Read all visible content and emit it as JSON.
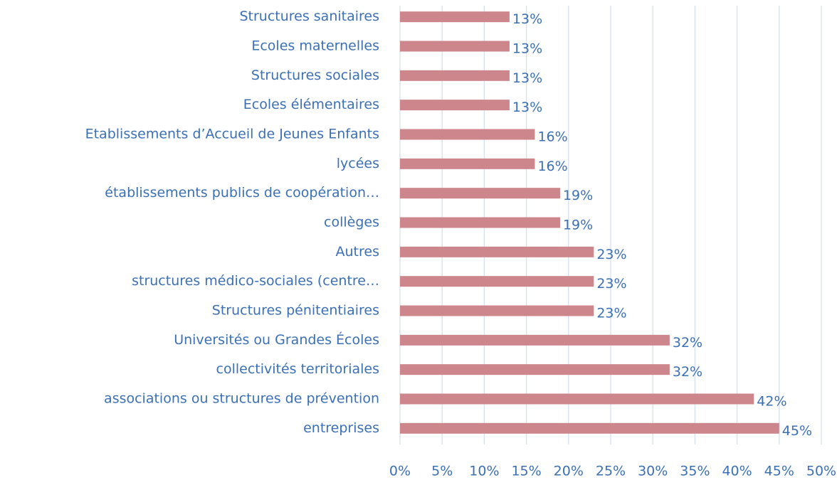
{
  "chart_data": {
    "type": "bar",
    "orientation": "horizontal",
    "categories": [
      "Structures sanitaires",
      "Ecoles maternelles",
      "Structures sociales",
      "Ecoles élémentaires",
      "Etablissements d’Accueil de Jeunes Enfants",
      "lycées",
      "établissements publics de coopération…",
      "collèges",
      "Autres",
      "structures médico-sociales (centre…",
      "Structures pénitentiaires",
      "Universités ou Grandes Écoles",
      "collectivités territoriales",
      "associations ou structures de prévention",
      "entreprises"
    ],
    "values": [
      13,
      13,
      13,
      13,
      16,
      16,
      19,
      19,
      23,
      23,
      23,
      32,
      32,
      42,
      45
    ],
    "value_labels": [
      "13%",
      "13%",
      "13%",
      "13%",
      "16%",
      "16%",
      "19%",
      "19%",
      "23%",
      "23%",
      "23%",
      "32%",
      "32%",
      "42%",
      "45%"
    ],
    "color": "#cd868c",
    "xlim": [
      0,
      50
    ],
    "xticks": [
      {
        "value": 0,
        "label": "0%"
      },
      {
        "value": 5,
        "label": "5%"
      },
      {
        "value": 10,
        "label": "10%"
      },
      {
        "value": 15,
        "label": "15%"
      },
      {
        "value": 20,
        "label": "20%"
      },
      {
        "value": 25,
        "label": "25%"
      },
      {
        "value": 30,
        "label": "30%"
      },
      {
        "value": 35,
        "label": "35%"
      },
      {
        "value": 40,
        "label": "40%"
      },
      {
        "value": 45,
        "label": "45%"
      },
      {
        "value": 50,
        "label": "50%"
      }
    ],
    "grid": true
  }
}
